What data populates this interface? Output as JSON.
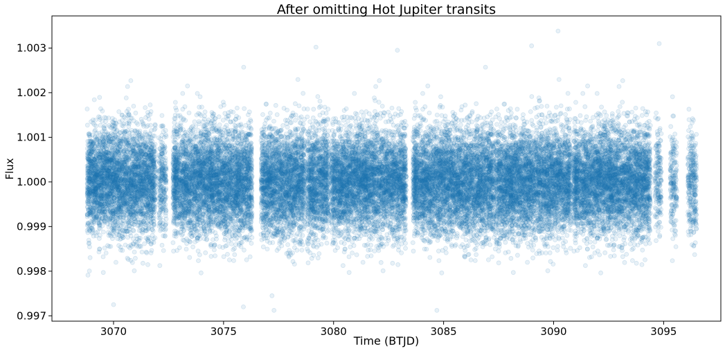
{
  "chart_data": {
    "type": "scatter",
    "title": "After omitting Hot Jupiter transits",
    "xlabel": "Time (BTJD)",
    "ylabel": "Flux",
    "xlim": [
      3067.2,
      3097.6
    ],
    "ylim": [
      0.99688,
      1.00372
    ],
    "x_ticks": [
      3070,
      3075,
      3080,
      3085,
      3090,
      3095
    ],
    "x_tick_labels": [
      "3070",
      "3075",
      "3080",
      "3085",
      "3090",
      "3095"
    ],
    "y_ticks": [
      0.997,
      0.998,
      0.999,
      1.0,
      1.001,
      1.002,
      1.003
    ],
    "y_tick_labels": [
      "0.997",
      "0.998",
      "0.999",
      "1.000",
      "1.001",
      "1.002",
      "1.003"
    ],
    "grid": false,
    "legend": "none",
    "marker_color": "#1f77b4",
    "marker_alpha": 0.1,
    "center_flux": 1.0,
    "scatter_std": 0.0006,
    "observation_segments": [
      {
        "start": 3068.8,
        "end": 3071.9,
        "weight": 1.0
      },
      {
        "start": 3072.05,
        "end": 3072.4,
        "weight": 0.6
      },
      {
        "start": 3072.7,
        "end": 3076.3,
        "weight": 1.0
      },
      {
        "start": 3076.7,
        "end": 3078.7,
        "weight": 1.0
      },
      {
        "start": 3078.8,
        "end": 3079.8,
        "weight": 1.0
      },
      {
        "start": 3079.9,
        "end": 3083.3,
        "weight": 1.0
      },
      {
        "start": 3083.6,
        "end": 3087.3,
        "weight": 1.0
      },
      {
        "start": 3087.35,
        "end": 3090.8,
        "weight": 1.0
      },
      {
        "start": 3090.9,
        "end": 3094.4,
        "weight": 1.0
      },
      {
        "start": 3094.6,
        "end": 3094.9,
        "weight": 0.5
      },
      {
        "start": 3095.3,
        "end": 3095.6,
        "weight": 0.5
      },
      {
        "start": 3096.1,
        "end": 3096.5,
        "weight": 0.6
      }
    ],
    "highlighted_points": [
      {
        "x": 3070.0,
        "y": 0.99725
      },
      {
        "x": 3075.9,
        "y": 0.9972
      },
      {
        "x": 3089.0,
        "y": 1.00305
      },
      {
        "x": 3090.2,
        "y": 1.00338
      },
      {
        "x": 3094.8,
        "y": 1.0031
      },
      {
        "x": 3079.2,
        "y": 1.00302
      },
      {
        "x": 3082.9,
        "y": 1.00295
      },
      {
        "x": 3077.2,
        "y": 0.99745
      }
    ]
  }
}
